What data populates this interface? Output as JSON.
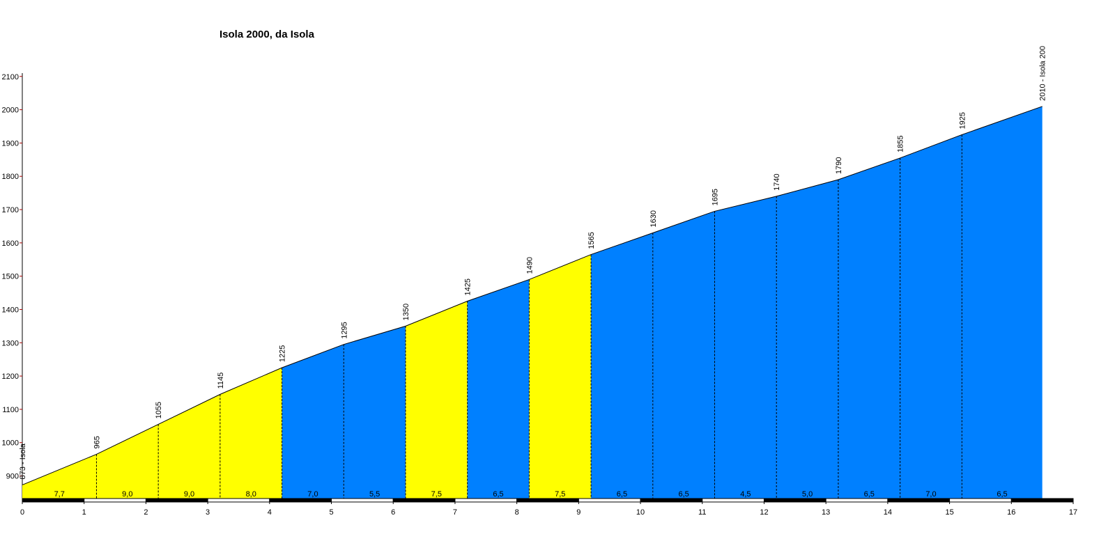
{
  "chart_data": {
    "type": "profile",
    "title": "Isola 2000, da Isola",
    "x": [
      0,
      1.2,
      2.2,
      3.2,
      4.2,
      5.2,
      6.2,
      7.2,
      8.2,
      9.2,
      10.2,
      11.2,
      12.2,
      13.2,
      14.2,
      15.2,
      16.5
    ],
    "values": [
      873,
      965,
      1055,
      1145,
      1225,
      1295,
      1350,
      1425,
      1490,
      1565,
      1630,
      1695,
      1740,
      1790,
      1855,
      1925,
      2010
    ],
    "value_labels": [
      "873 - Isola",
      "965",
      "1055",
      "1145",
      "1225",
      "1295",
      "1350",
      "1425",
      "1490",
      "1565",
      "1630",
      "1695",
      "1740",
      "1790",
      "1855",
      "1925",
      "2010 - Isola 200"
    ],
    "gradients": [
      7.7,
      9.0,
      9.0,
      8.0,
      7.0,
      5.5,
      7.5,
      6.5,
      7.5,
      6.5,
      6.5,
      4.5,
      5.0,
      6.5,
      7.0,
      6.5
    ],
    "gradient_labels": [
      "7,7",
      "9,0",
      "9,0",
      "8,0",
      "7,0",
      "5,5",
      "7,5",
      "6,5",
      "7,5",
      "6,5",
      "6,5",
      "4,5",
      "5,0",
      "6,5",
      "7,0",
      "6,5"
    ],
    "segment_colors": [
      "#ffff00",
      "#ffff00",
      "#ffff00",
      "#ffff00",
      "#0080ff",
      "#0080ff",
      "#ffff00",
      "#0080ff",
      "#ffff00",
      "#0080ff",
      "#0080ff",
      "#0080ff",
      "#0080ff",
      "#0080ff",
      "#0080ff",
      "#0080ff"
    ],
    "xlim": [
      0,
      17
    ],
    "xticks": [
      0,
      1,
      2,
      3,
      4,
      5,
      6,
      7,
      8,
      9,
      10,
      11,
      12,
      13,
      14,
      15,
      16,
      17
    ],
    "ylim": [
      830,
      2110
    ],
    "yticks": [
      900,
      1000,
      1100,
      1200,
      1300,
      1400,
      1500,
      1600,
      1700,
      1800,
      1900,
      2000,
      2100
    ]
  }
}
